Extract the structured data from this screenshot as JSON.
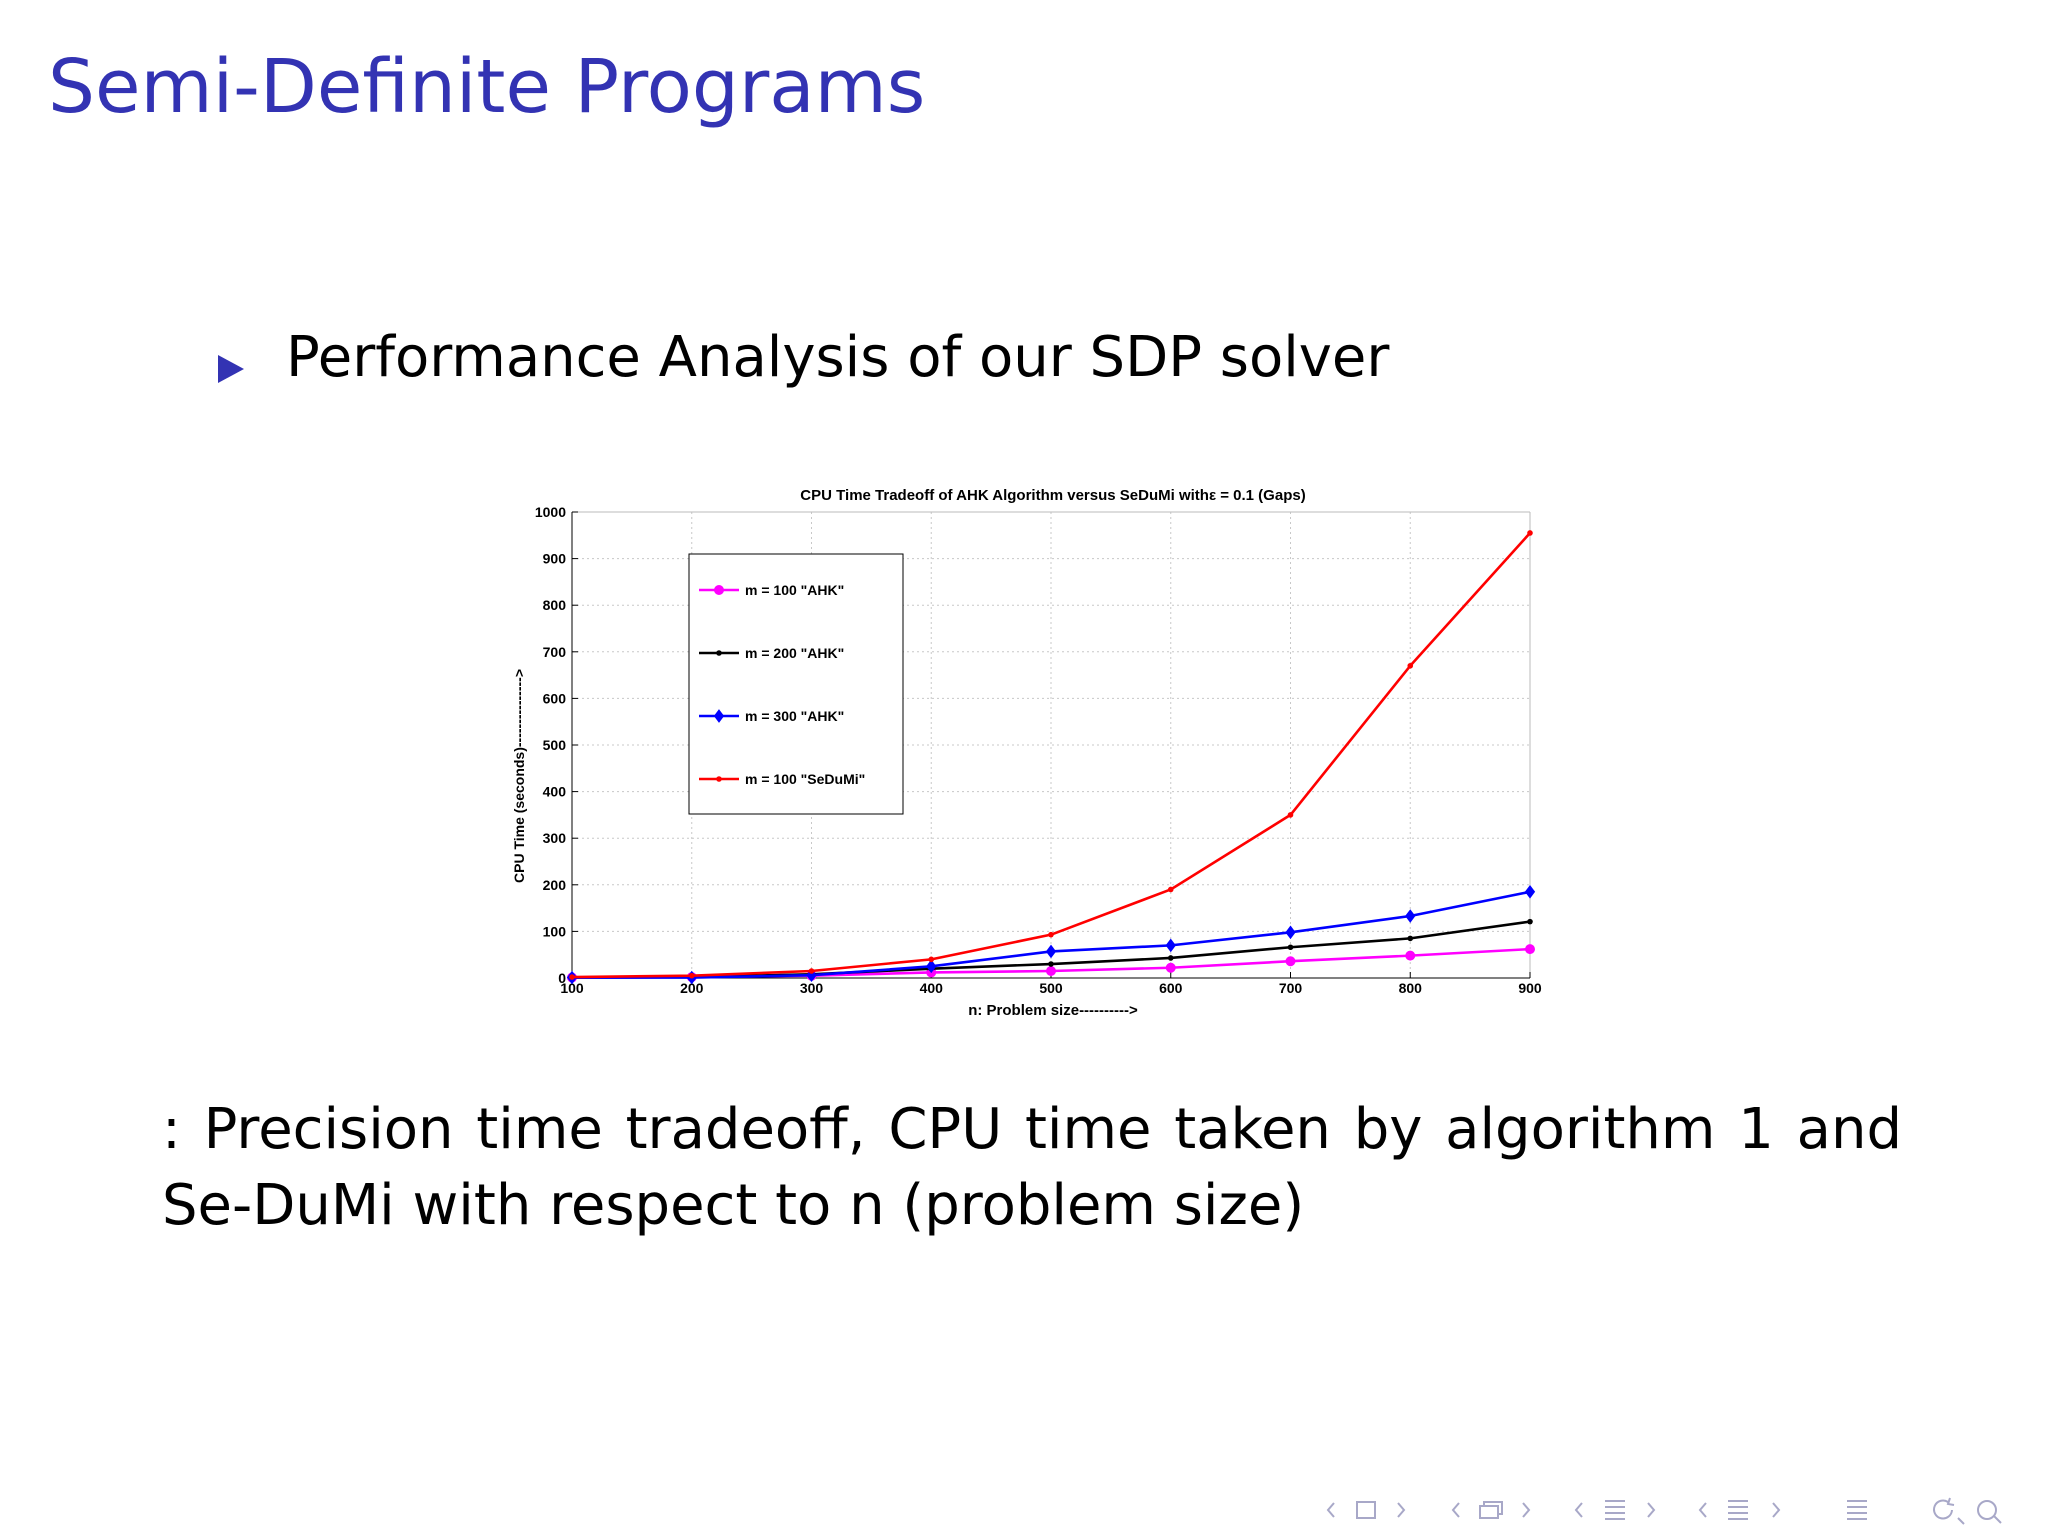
{
  "slide": {
    "title": "Semi-Definite Programs",
    "bullet": "Performance Analysis of our SDP solver",
    "caption": ":  Precision time tradeoff, CPU time taken by algorithm 1 and Se-DuMi with respect to n (problem size)"
  },
  "colors": {
    "title": "#3333b3",
    "m100_ahk": "#ff00ff",
    "m200_ahk": "#000000",
    "m300_ahk": "#0000ff",
    "m100_sedumi": "#ff0000"
  },
  "chart_data": {
    "type": "line",
    "title": "CPU Time Tradeoff of AHK Algorithm versus SeDuMi withε = 0.1 (Gaps)",
    "xlabel": "n: Problem size---------->",
    "ylabel": "CPU Time (seconds)--------------->",
    "x": [
      100,
      200,
      300,
      400,
      500,
      600,
      700,
      800,
      900
    ],
    "xlim": [
      100,
      900
    ],
    "ylim": [
      0,
      1000
    ],
    "xticks": [
      "100",
      "200",
      "300",
      "400",
      "500",
      "600",
      "700",
      "800",
      "900"
    ],
    "yticks": [
      "0",
      "100",
      "200",
      "300",
      "400",
      "500",
      "600",
      "700",
      "800",
      "900",
      "1000"
    ],
    "grid": true,
    "legend_position": "top-left",
    "series": [
      {
        "name": "m = 100 \"AHK\"",
        "values": [
          1,
          2,
          5,
          12,
          15,
          22,
          36,
          48,
          62
        ],
        "color": "#ff00ff",
        "marker": "circle"
      },
      {
        "name": "m = 200 \"AHK\"",
        "values": [
          1,
          2,
          8,
          20,
          30,
          43,
          66,
          85,
          121
        ],
        "color": "#000000",
        "marker": "dot"
      },
      {
        "name": "m = 300 \"AHK\"",
        "values": [
          1,
          1,
          6,
          25,
          57,
          70,
          98,
          133,
          185
        ],
        "color": "#0000ff",
        "marker": "diamond"
      },
      {
        "name": "m = 100 \"SeDuMi\"",
        "values": [
          2,
          5,
          15,
          40,
          93,
          190,
          350,
          670,
          955
        ],
        "color": "#ff0000",
        "marker": "dot"
      }
    ]
  },
  "nav": {
    "icons": [
      "arrow-left-icon",
      "frame-icon",
      "arrow-right-icon",
      "arrow-left-icon",
      "subsection-icon",
      "arrow-right-icon",
      "arrow-left-icon",
      "section-icon",
      "arrow-right-icon",
      "arrow-left-icon",
      "alignment-icon",
      "arrow-right-icon",
      "appendix-icon",
      "search-back-icon",
      "search-icon"
    ]
  }
}
